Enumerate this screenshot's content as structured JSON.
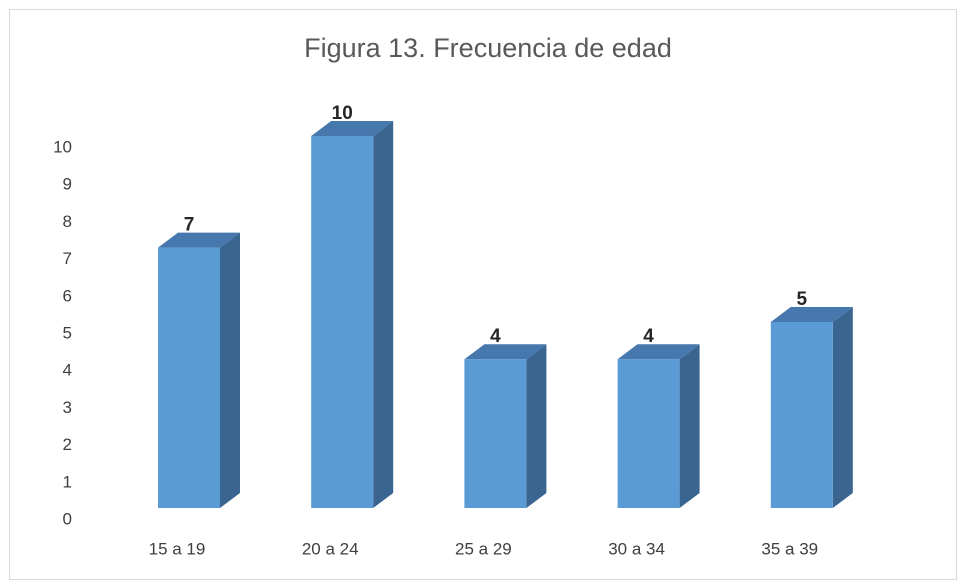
{
  "chart_data": {
    "type": "bar3d",
    "title": "Figura 13. Frecuencia de edad",
    "categories": [
      "15 a 19",
      "20 a 24",
      "25 a 29",
      "30 a 34",
      "35 a 39"
    ],
    "values": [
      7,
      10,
      4,
      4,
      5
    ],
    "color": "#5b9bd5",
    "ylim": [
      0,
      10
    ],
    "yticks": [
      0,
      1,
      2,
      3,
      4,
      5,
      6,
      7,
      8,
      9,
      10
    ],
    "grid": false
  }
}
